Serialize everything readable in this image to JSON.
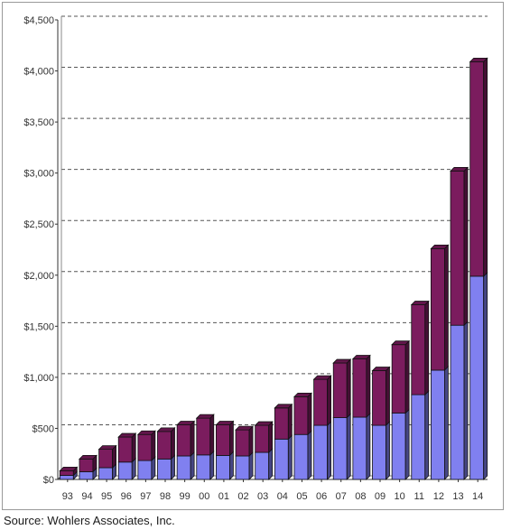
{
  "source_note": "Source: Wohlers Associates, Inc.",
  "chart_data": {
    "type": "bar",
    "stacked": true,
    "style": "3d",
    "categories": [
      "93",
      "94",
      "95",
      "96",
      "97",
      "98",
      "99",
      "00",
      "01",
      "02",
      "03",
      "04",
      "05",
      "06",
      "07",
      "08",
      "09",
      "10",
      "11",
      "12",
      "13",
      "14"
    ],
    "series": [
      {
        "color": "#8080f0",
        "values": [
          40,
          75,
          115,
          170,
          185,
          200,
          230,
          240,
          235,
          230,
          265,
          395,
          440,
          530,
          605,
          610,
          530,
          650,
          830,
          1070,
          1510,
          1990
        ]
      },
      {
        "color": "#7b1c5e",
        "values": [
          45,
          125,
          180,
          245,
          255,
          270,
          305,
          360,
          300,
          255,
          265,
          305,
          370,
          450,
          535,
          570,
          535,
          670,
          880,
          1190,
          1510,
          2100
        ]
      }
    ],
    "y_ticks": [
      "$0",
      "$500",
      "$1,000",
      "$1,500",
      "$2,000",
      "$2,500",
      "$3,000",
      "$3,500",
      "$4,000",
      "$4,500"
    ],
    "ylim": [
      0,
      4500
    ],
    "grid": "horizontal dashed",
    "title": "",
    "xlabel": "",
    "ylabel": ""
  }
}
